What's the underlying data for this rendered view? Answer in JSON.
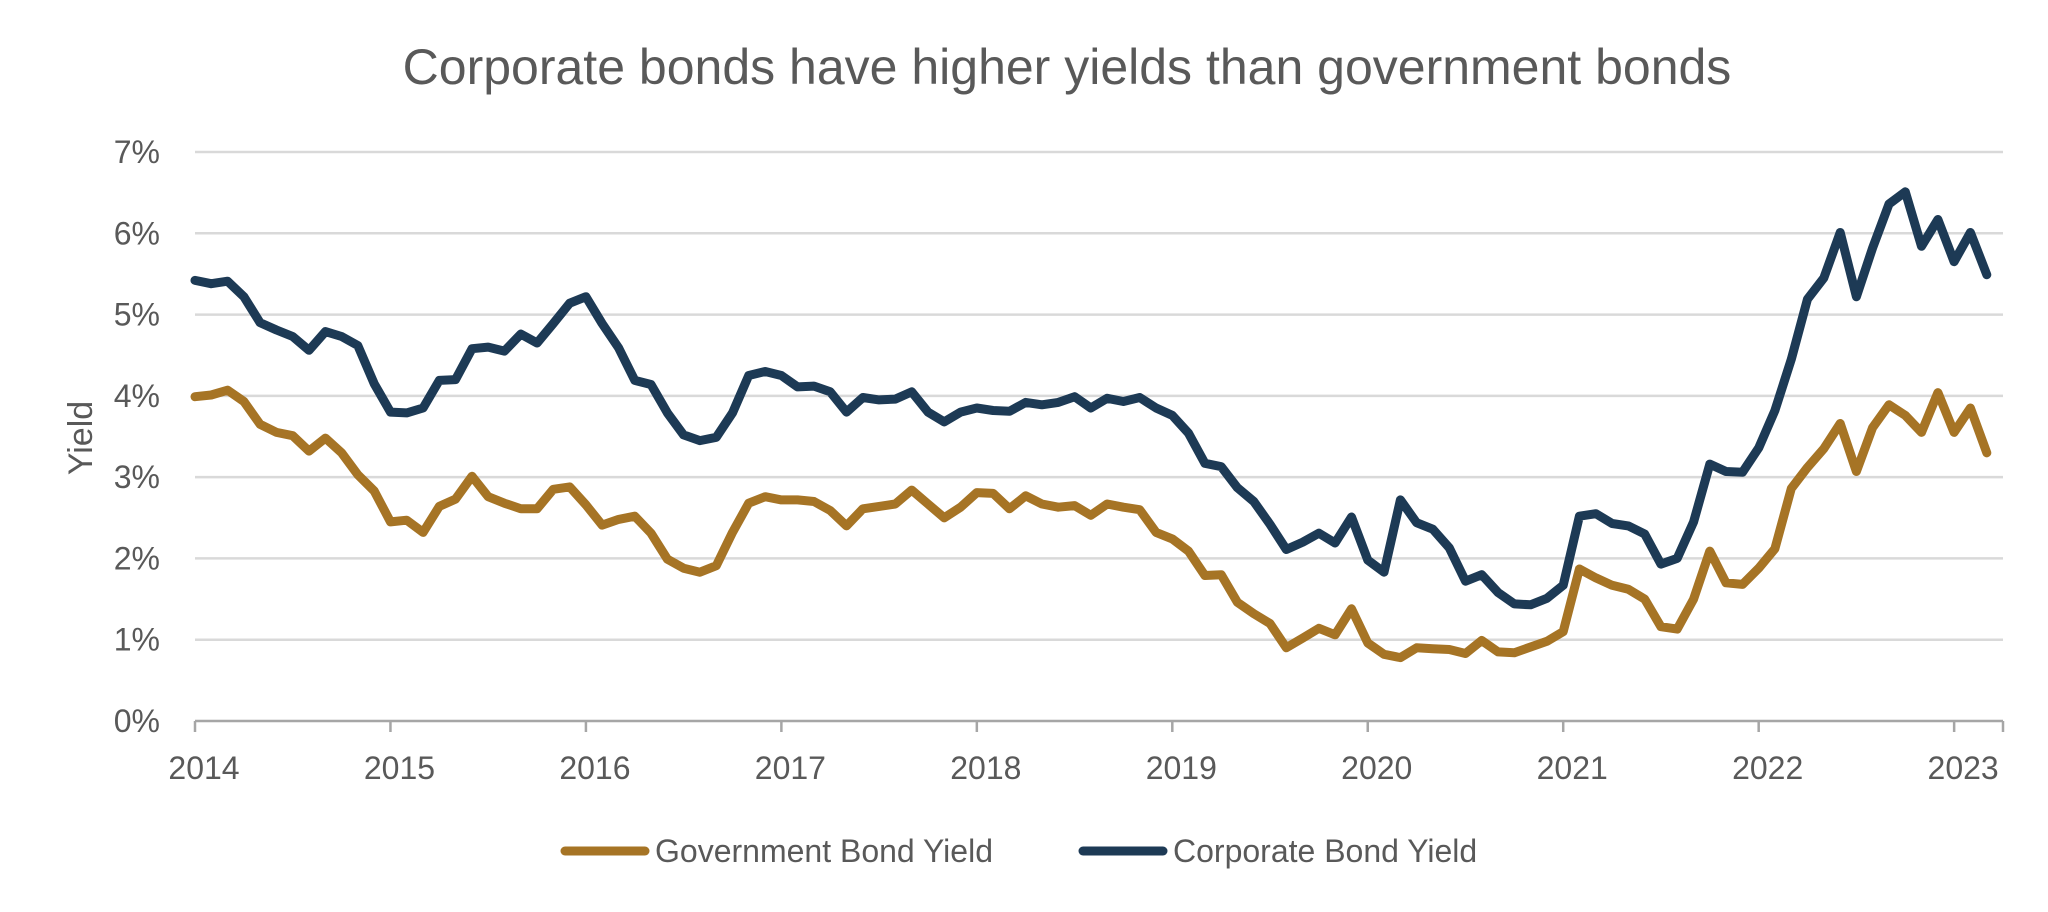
{
  "chart_data": {
    "type": "line",
    "title": "Corporate bonds have higher yields than government bonds",
    "xlabel": "",
    "ylabel": "Yield",
    "ylim": [
      0,
      7
    ],
    "xlim": [
      2014.0,
      2023.25
    ],
    "yticks": [
      {
        "value": 0,
        "label": "0%"
      },
      {
        "value": 1,
        "label": "1%"
      },
      {
        "value": 2,
        "label": "2%"
      },
      {
        "value": 3,
        "label": "3%"
      },
      {
        "value": 4,
        "label": "4%"
      },
      {
        "value": 5,
        "label": "5%"
      },
      {
        "value": 6,
        "label": "6%"
      },
      {
        "value": 7,
        "label": "7%"
      }
    ],
    "xticks": [
      {
        "value": 2014,
        "label": "2014"
      },
      {
        "value": 2015,
        "label": "2015"
      },
      {
        "value": 2016,
        "label": "2016"
      },
      {
        "value": 2017,
        "label": "2017"
      },
      {
        "value": 2018,
        "label": "2018"
      },
      {
        "value": 2019,
        "label": "2019"
      },
      {
        "value": 2020,
        "label": "2020"
      },
      {
        "value": 2021,
        "label": "2021"
      },
      {
        "value": 2022,
        "label": "2022"
      },
      {
        "value": 2023,
        "label": "2023"
      }
    ],
    "grid": true,
    "legend_position": "bottom",
    "series": [
      {
        "name": "Government Bond Yield",
        "color": "#A67425",
        "points": [
          [
            2014.0,
            3.99
          ],
          [
            2014.083,
            4.01
          ],
          [
            2014.167,
            4.07
          ],
          [
            2014.25,
            3.93
          ],
          [
            2014.333,
            3.65
          ],
          [
            2014.417,
            3.55
          ],
          [
            2014.5,
            3.51
          ],
          [
            2014.583,
            3.32
          ],
          [
            2014.667,
            3.48
          ],
          [
            2014.75,
            3.3
          ],
          [
            2014.833,
            3.03
          ],
          [
            2014.917,
            2.83
          ],
          [
            2015.0,
            2.45
          ],
          [
            2015.083,
            2.47
          ],
          [
            2015.167,
            2.32
          ],
          [
            2015.25,
            2.64
          ],
          [
            2015.333,
            2.73
          ],
          [
            2015.417,
            3.01
          ],
          [
            2015.5,
            2.76
          ],
          [
            2015.583,
            2.68
          ],
          [
            2015.667,
            2.61
          ],
          [
            2015.75,
            2.61
          ],
          [
            2015.833,
            2.85
          ],
          [
            2015.917,
            2.88
          ],
          [
            2016.0,
            2.66
          ],
          [
            2016.083,
            2.41
          ],
          [
            2016.167,
            2.48
          ],
          [
            2016.25,
            2.52
          ],
          [
            2016.333,
            2.31
          ],
          [
            2016.417,
            1.99
          ],
          [
            2016.5,
            1.88
          ],
          [
            2016.583,
            1.83
          ],
          [
            2016.667,
            1.91
          ],
          [
            2016.75,
            2.32
          ],
          [
            2016.833,
            2.68
          ],
          [
            2016.917,
            2.76
          ],
          [
            2017.0,
            2.72
          ],
          [
            2017.083,
            2.72
          ],
          [
            2017.167,
            2.7
          ],
          [
            2017.25,
            2.59
          ],
          [
            2017.333,
            2.4
          ],
          [
            2017.417,
            2.61
          ],
          [
            2017.5,
            2.64
          ],
          [
            2017.583,
            2.67
          ],
          [
            2017.667,
            2.84
          ],
          [
            2017.75,
            2.67
          ],
          [
            2017.833,
            2.5
          ],
          [
            2017.917,
            2.63
          ],
          [
            2018.0,
            2.81
          ],
          [
            2018.083,
            2.8
          ],
          [
            2018.167,
            2.61
          ],
          [
            2018.25,
            2.77
          ],
          [
            2018.333,
            2.67
          ],
          [
            2018.417,
            2.63
          ],
          [
            2018.5,
            2.65
          ],
          [
            2018.583,
            2.53
          ],
          [
            2018.667,
            2.67
          ],
          [
            2018.75,
            2.63
          ],
          [
            2018.833,
            2.6
          ],
          [
            2018.917,
            2.32
          ],
          [
            2019.0,
            2.24
          ],
          [
            2019.083,
            2.09
          ],
          [
            2019.167,
            1.79
          ],
          [
            2019.25,
            1.8
          ],
          [
            2019.333,
            1.46
          ],
          [
            2019.417,
            1.32
          ],
          [
            2019.5,
            1.2
          ],
          [
            2019.583,
            0.9
          ],
          [
            2019.667,
            1.02
          ],
          [
            2019.75,
            1.14
          ],
          [
            2019.833,
            1.06
          ],
          [
            2019.917,
            1.38
          ],
          [
            2020.0,
            0.96
          ],
          [
            2020.083,
            0.82
          ],
          [
            2020.167,
            0.78
          ],
          [
            2020.25,
            0.9
          ],
          [
            2020.333,
            0.89
          ],
          [
            2020.417,
            0.88
          ],
          [
            2020.5,
            0.83
          ],
          [
            2020.583,
            0.99
          ],
          [
            2020.667,
            0.85
          ],
          [
            2020.75,
            0.84
          ],
          [
            2020.833,
            0.91
          ],
          [
            2020.917,
            0.98
          ],
          [
            2021.0,
            1.1
          ],
          [
            2021.083,
            1.87
          ],
          [
            2021.167,
            1.76
          ],
          [
            2021.25,
            1.67
          ],
          [
            2021.333,
            1.62
          ],
          [
            2021.417,
            1.5
          ],
          [
            2021.5,
            1.16
          ],
          [
            2021.583,
            1.13
          ],
          [
            2021.667,
            1.5
          ],
          [
            2021.75,
            2.09
          ],
          [
            2021.833,
            1.7
          ],
          [
            2021.917,
            1.68
          ],
          [
            2022.0,
            1.88
          ],
          [
            2022.083,
            2.12
          ],
          [
            2022.167,
            2.86
          ],
          [
            2022.25,
            3.12
          ],
          [
            2022.333,
            3.35
          ],
          [
            2022.417,
            3.66
          ],
          [
            2022.5,
            3.07
          ],
          [
            2022.583,
            3.61
          ],
          [
            2022.667,
            3.89
          ],
          [
            2022.75,
            3.76
          ],
          [
            2022.833,
            3.55
          ],
          [
            2022.917,
            4.04
          ],
          [
            2023.0,
            3.55
          ],
          [
            2023.083,
            3.85
          ],
          [
            2023.167,
            3.3
          ]
        ]
      },
      {
        "name": "Corporate Bond Yield",
        "color": "#1D3A55",
        "points": [
          [
            2014.0,
            5.42
          ],
          [
            2014.083,
            5.38
          ],
          [
            2014.167,
            5.41
          ],
          [
            2014.25,
            5.22
          ],
          [
            2014.333,
            4.9
          ],
          [
            2014.417,
            4.81
          ],
          [
            2014.5,
            4.73
          ],
          [
            2014.583,
            4.56
          ],
          [
            2014.667,
            4.79
          ],
          [
            2014.75,
            4.73
          ],
          [
            2014.833,
            4.62
          ],
          [
            2014.917,
            4.15
          ],
          [
            2015.0,
            3.8
          ],
          [
            2015.083,
            3.79
          ],
          [
            2015.167,
            3.85
          ],
          [
            2015.25,
            4.19
          ],
          [
            2015.333,
            4.2
          ],
          [
            2015.417,
            4.58
          ],
          [
            2015.5,
            4.6
          ],
          [
            2015.583,
            4.55
          ],
          [
            2015.667,
            4.76
          ],
          [
            2015.75,
            4.65
          ],
          [
            2015.833,
            4.89
          ],
          [
            2015.917,
            5.14
          ],
          [
            2016.0,
            5.22
          ],
          [
            2016.083,
            4.89
          ],
          [
            2016.167,
            4.59
          ],
          [
            2016.25,
            4.19
          ],
          [
            2016.333,
            4.14
          ],
          [
            2016.417,
            3.79
          ],
          [
            2016.5,
            3.52
          ],
          [
            2016.583,
            3.45
          ],
          [
            2016.667,
            3.49
          ],
          [
            2016.75,
            3.79
          ],
          [
            2016.833,
            4.25
          ],
          [
            2016.917,
            4.3
          ],
          [
            2017.0,
            4.25
          ],
          [
            2017.083,
            4.11
          ],
          [
            2017.167,
            4.12
          ],
          [
            2017.25,
            4.05
          ],
          [
            2017.333,
            3.8
          ],
          [
            2017.417,
            3.98
          ],
          [
            2017.5,
            3.95
          ],
          [
            2017.583,
            3.96
          ],
          [
            2017.667,
            4.05
          ],
          [
            2017.75,
            3.8
          ],
          [
            2017.833,
            3.68
          ],
          [
            2017.917,
            3.8
          ],
          [
            2018.0,
            3.85
          ],
          [
            2018.083,
            3.82
          ],
          [
            2018.167,
            3.81
          ],
          [
            2018.25,
            3.92
          ],
          [
            2018.333,
            3.89
          ],
          [
            2018.417,
            3.92
          ],
          [
            2018.5,
            3.99
          ],
          [
            2018.583,
            3.85
          ],
          [
            2018.667,
            3.97
          ],
          [
            2018.75,
            3.93
          ],
          [
            2018.833,
            3.98
          ],
          [
            2018.917,
            3.85
          ],
          [
            2019.0,
            3.76
          ],
          [
            2019.083,
            3.54
          ],
          [
            2019.167,
            3.17
          ],
          [
            2019.25,
            3.13
          ],
          [
            2019.333,
            2.87
          ],
          [
            2019.417,
            2.7
          ],
          [
            2019.5,
            2.42
          ],
          [
            2019.583,
            2.11
          ],
          [
            2019.667,
            2.2
          ],
          [
            2019.75,
            2.31
          ],
          [
            2019.833,
            2.19
          ],
          [
            2019.917,
            2.51
          ],
          [
            2020.0,
            1.98
          ],
          [
            2020.083,
            1.83
          ],
          [
            2020.167,
            2.72
          ],
          [
            2020.25,
            2.44
          ],
          [
            2020.333,
            2.36
          ],
          [
            2020.417,
            2.13
          ],
          [
            2020.5,
            1.72
          ],
          [
            2020.583,
            1.8
          ],
          [
            2020.667,
            1.58
          ],
          [
            2020.75,
            1.44
          ],
          [
            2020.833,
            1.43
          ],
          [
            2020.917,
            1.51
          ],
          [
            2021.0,
            1.67
          ],
          [
            2021.083,
            2.52
          ],
          [
            2021.167,
            2.55
          ],
          [
            2021.25,
            2.43
          ],
          [
            2021.333,
            2.4
          ],
          [
            2021.417,
            2.3
          ],
          [
            2021.5,
            1.93
          ],
          [
            2021.583,
            2.0
          ],
          [
            2021.667,
            2.45
          ],
          [
            2021.75,
            3.16
          ],
          [
            2021.833,
            3.07
          ],
          [
            2021.917,
            3.06
          ],
          [
            2022.0,
            3.36
          ],
          [
            2022.083,
            3.82
          ],
          [
            2022.167,
            4.45
          ],
          [
            2022.25,
            5.19
          ],
          [
            2022.333,
            5.45
          ],
          [
            2022.417,
            6.01
          ],
          [
            2022.5,
            5.22
          ],
          [
            2022.583,
            5.82
          ],
          [
            2022.667,
            6.36
          ],
          [
            2022.75,
            6.51
          ],
          [
            2022.833,
            5.84
          ],
          [
            2022.917,
            6.17
          ],
          [
            2023.0,
            5.65
          ],
          [
            2023.083,
            6.01
          ],
          [
            2023.167,
            5.49
          ]
        ]
      }
    ]
  }
}
